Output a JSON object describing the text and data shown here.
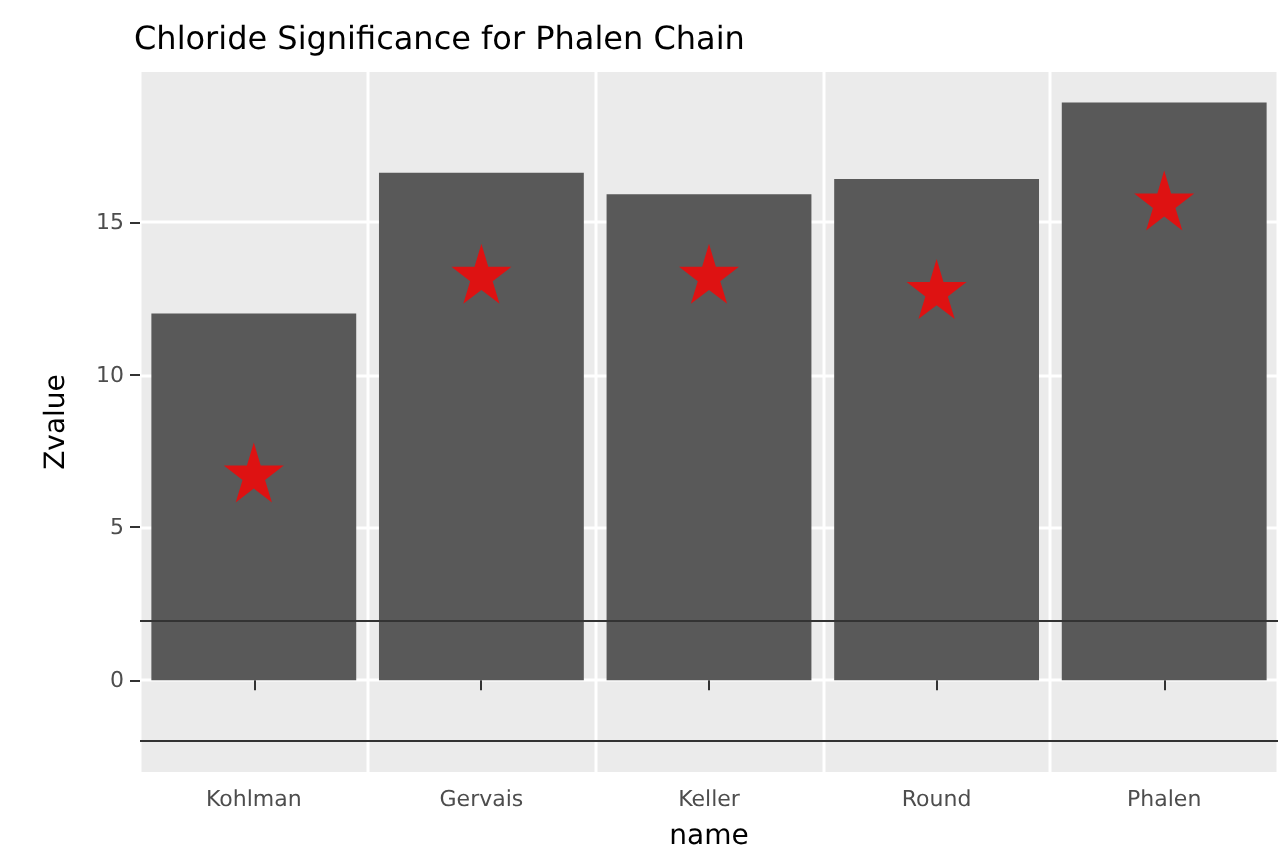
{
  "chart_data": {
    "type": "bar",
    "title": "Chloride Significance for Phalen Chain",
    "xlabel": "name",
    "ylabel": "Zvalue",
    "categories": [
      "Kohlman",
      "Gervais",
      "Keller",
      "Round",
      "Phalen"
    ],
    "series": [
      {
        "color": "#595959",
        "values": [
          12.0,
          16.6,
          15.9,
          16.4,
          18.9
        ]
      },
      {
        "type": "scatter",
        "marker": "star",
        "color": "#ff0000",
        "x": [
          "Kohlman",
          "Gervais",
          "Keller",
          "Round",
          "Phalen"
        ],
        "values": [
          6.8,
          13.3,
          13.3,
          12.8,
          15.7
        ]
      }
    ],
    "ylim": [
      -3,
      19.9
    ],
    "yticks": [
      0,
      5,
      10,
      15
    ],
    "grid": true,
    "ref_lines": [
      {
        "axis": "y",
        "value": 1.96,
        "color": "#333333"
      },
      {
        "axis": "y",
        "value": -1.96,
        "color": "#333333"
      }
    ]
  }
}
